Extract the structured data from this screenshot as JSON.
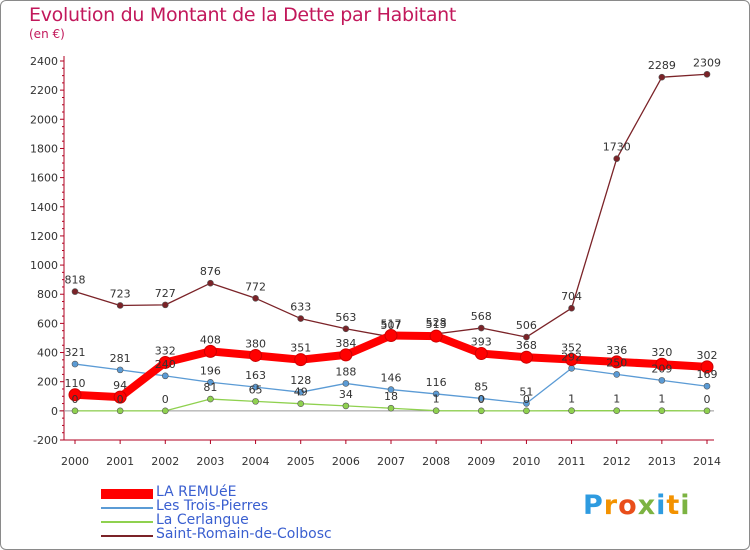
{
  "header": {
    "title": "Evolution du Montant de la Dette par Habitant",
    "subtitle": "(en €)"
  },
  "brand": {
    "logo_text": "Proxiti",
    "logo_colors": [
      "#2e9be0",
      "#f39200",
      "#e94e1b",
      "#7cb342",
      "#2e9be0",
      "#f39200",
      "#7cb342"
    ]
  },
  "chart_data": {
    "type": "line",
    "categories": [
      "2000",
      "2001",
      "2002",
      "2003",
      "2004",
      "2005",
      "2006",
      "2007",
      "2008",
      "2009",
      "2010",
      "2011",
      "2012",
      "2013",
      "2014"
    ],
    "y_ticks": [
      "-200",
      "0",
      "200",
      "400",
      "600",
      "800",
      "1000",
      "1200",
      "1400",
      "1600",
      "1800",
      "2000",
      "2200",
      "2400"
    ],
    "ylim": [
      -200,
      2400
    ],
    "grid": false,
    "legend_position": "bottom-left",
    "series": [
      {
        "name": "LA REMUéE",
        "color": "#ff0000",
        "values": [
          110,
          94,
          332,
          408,
          380,
          351,
          384,
          517,
          513,
          393,
          368,
          352,
          336,
          320,
          302
        ],
        "labels": [
          "110",
          "94",
          "332",
          "408",
          "380",
          "351",
          "384",
          "517",
          "513",
          "393",
          "368",
          "352",
          "336",
          "320",
          "302"
        ]
      },
      {
        "name": "Les Trois-Pierres",
        "color": "#5b9bd5",
        "values": [
          321,
          281,
          240,
          196,
          163,
          128,
          188,
          146,
          116,
          85,
          51,
          292,
          250,
          209,
          169
        ],
        "labels": [
          "321",
          "281",
          "240",
          "196",
          "163",
          "128",
          "188",
          "146",
          "116",
          "85",
          "51",
          "292",
          "250",
          "209",
          "169"
        ]
      },
      {
        "name": "La Cerlangue",
        "color": "#8fd14f",
        "values": [
          0,
          0,
          0,
          81,
          65,
          49,
          34,
          18,
          1,
          0,
          0,
          1,
          1,
          1,
          0
        ],
        "labels": [
          "0",
          "0",
          "0",
          "81",
          "65",
          "49",
          "34",
          "18",
          "1",
          "0",
          "0",
          "1",
          "1",
          "1",
          "0"
        ]
      },
      {
        "name": "Saint-Romain-de-Colbosc",
        "color": "#7b2328",
        "values": [
          818,
          723,
          727,
          876,
          772,
          633,
          563,
          507,
          528,
          568,
          506,
          704,
          1730,
          2289,
          2309
        ],
        "labels": [
          "818",
          "723",
          "727",
          "876",
          "772",
          "633",
          "563",
          "507",
          "528",
          "568",
          "506",
          "704",
          "1730",
          "2289",
          "2309"
        ]
      }
    ]
  }
}
